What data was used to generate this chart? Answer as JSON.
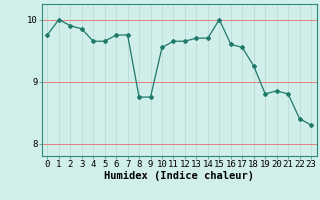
{
  "x": [
    0,
    1,
    2,
    3,
    4,
    5,
    6,
    7,
    8,
    9,
    10,
    11,
    12,
    13,
    14,
    15,
    16,
    17,
    18,
    19,
    20,
    21,
    22,
    23
  ],
  "y": [
    9.75,
    10.0,
    9.9,
    9.85,
    9.65,
    9.65,
    9.75,
    9.75,
    8.75,
    8.75,
    9.55,
    9.65,
    9.65,
    9.7,
    9.7,
    10.0,
    9.6,
    9.55,
    9.25,
    8.8,
    8.85,
    8.8,
    8.4,
    8.3
  ],
  "line_color": "#1e7a6a",
  "marker_color": "#1e7a6a",
  "bg_color": "#d0eeea",
  "grid_color_v": "#b8d8d4",
  "grid_color_h": "#e08080",
  "xlabel": "Humidex (Indice chaleur)",
  "xlabel_fontsize": 7.5,
  "ylim": [
    7.8,
    10.25
  ],
  "yticks": [
    8,
    9,
    10
  ],
  "xlim": [
    -0.5,
    23.5
  ],
  "xticks": [
    0,
    1,
    2,
    3,
    4,
    5,
    6,
    7,
    8,
    9,
    10,
    11,
    12,
    13,
    14,
    15,
    16,
    17,
    18,
    19,
    20,
    21,
    22,
    23
  ],
  "tick_fontsize": 6.5,
  "spine_color": "#2e8b7a"
}
